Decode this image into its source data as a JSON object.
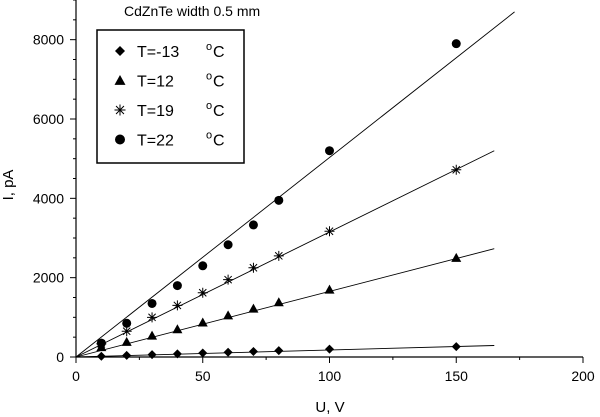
{
  "chart_data": {
    "type": "scatter",
    "title": "CdZnTe width 0.5 mm",
    "xlabel": "U, V",
    "ylabel": "I, pA",
    "xlim": [
      0,
      200
    ],
    "ylim": [
      0,
      9000
    ],
    "xticks": [
      0,
      50,
      100,
      150,
      200
    ],
    "yticks": [
      0,
      2000,
      4000,
      6000,
      8000
    ],
    "grid": false,
    "legend_position": "top-left",
    "series": [
      {
        "name": "T=-13",
        "unit": "o",
        "unit_suffix": "C",
        "marker": "diamond",
        "x": [
          10,
          20,
          30,
          40,
          50,
          60,
          70,
          80,
          100,
          150
        ],
        "y": [
          20,
          40,
          60,
          80,
          100,
          120,
          140,
          160,
          200,
          260
        ],
        "fit": {
          "x": [
            0,
            165
          ],
          "y": [
            0,
            290
          ]
        }
      },
      {
        "name": "T=12",
        "unit": "o",
        "unit_suffix": "C",
        "marker": "triangle",
        "x": [
          10,
          20,
          30,
          40,
          50,
          60,
          70,
          80,
          100,
          150
        ],
        "y": [
          250,
          380,
          540,
          700,
          870,
          1050,
          1220,
          1380,
          1700,
          2500
        ],
        "fit": {
          "x": [
            0,
            165
          ],
          "y": [
            0,
            2730
          ]
        }
      },
      {
        "name": "T=19",
        "unit": "o",
        "unit_suffix": "C",
        "marker": "star",
        "x": [
          10,
          20,
          30,
          40,
          50,
          60,
          70,
          80,
          100,
          150
        ],
        "y": [
          330,
          650,
          1000,
          1300,
          1620,
          1950,
          2250,
          2550,
          3170,
          4720
        ],
        "fit": {
          "x": [
            0,
            165
          ],
          "y": [
            0,
            5200
          ]
        }
      },
      {
        "name": "T=22",
        "unit": "o",
        "unit_suffix": "C",
        "marker": "circle",
        "x": [
          10,
          20,
          30,
          40,
          50,
          60,
          70,
          80,
          100,
          150
        ],
        "y": [
          350,
          850,
          1350,
          1800,
          2300,
          2830,
          3330,
          3950,
          5200,
          7900
        ],
        "fit": {
          "x": [
            0,
            173
          ],
          "y": [
            0,
            8700
          ]
        }
      }
    ]
  }
}
